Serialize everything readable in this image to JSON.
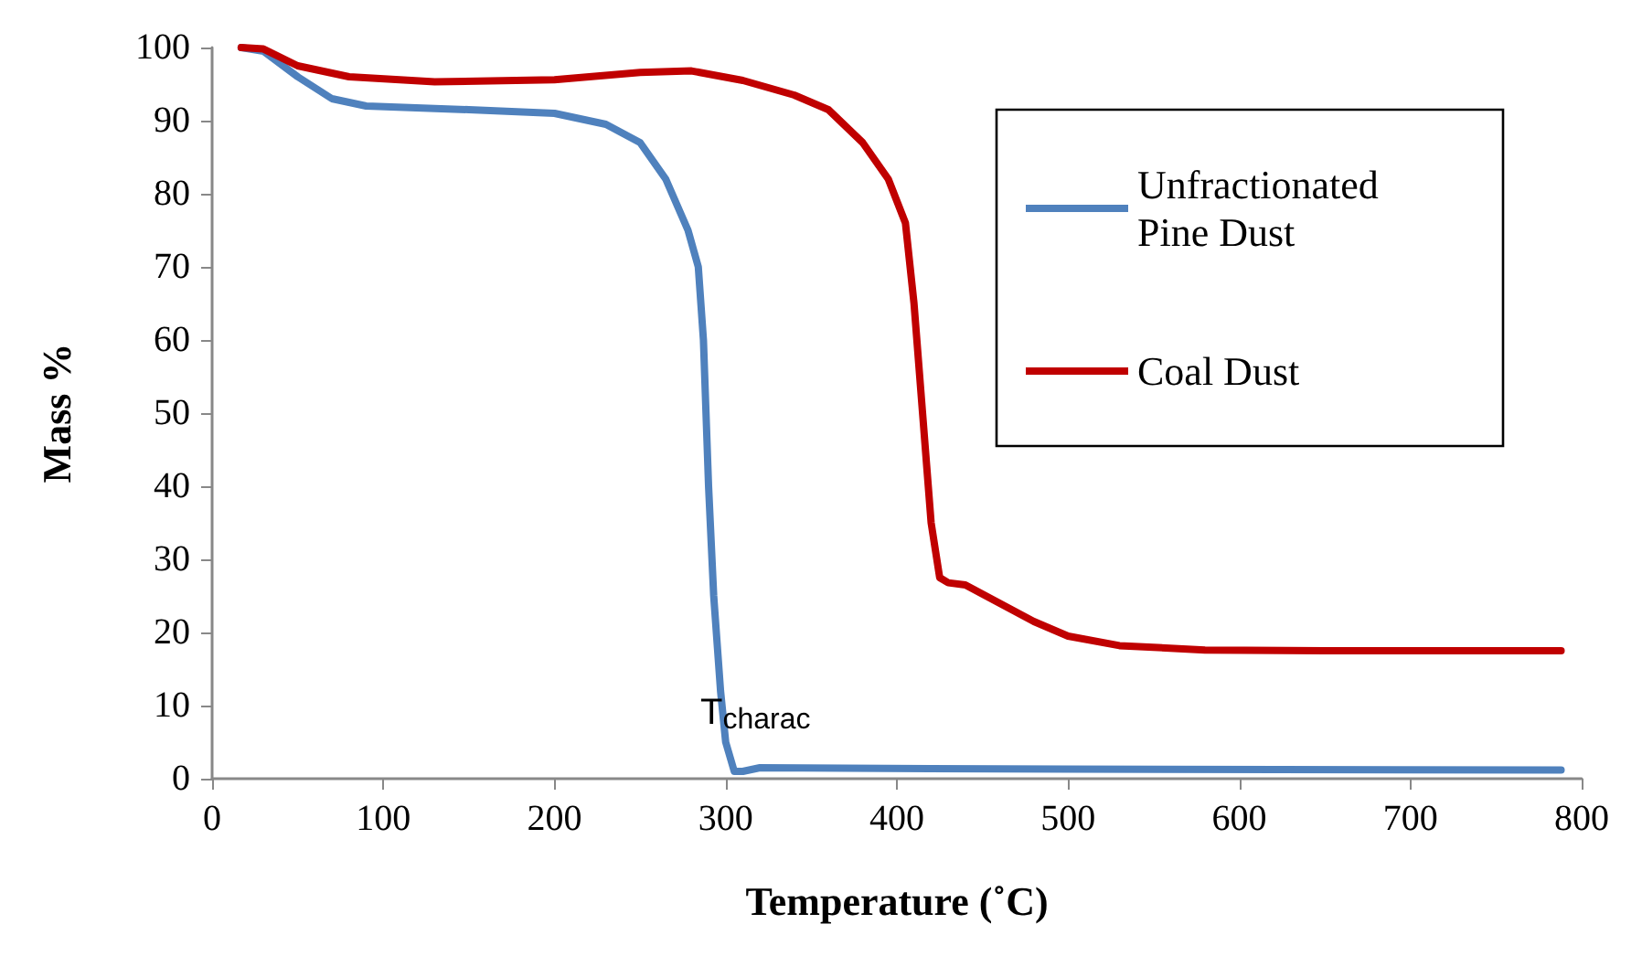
{
  "chart_data": {
    "type": "line",
    "xlabel": "Temperature (˚C)",
    "ylabel": "Mass %",
    "xlim": [
      0,
      800
    ],
    "xticks": [
      0,
      100,
      200,
      300,
      400,
      500,
      600,
      700,
      800
    ],
    "ylim": [
      0,
      100
    ],
    "yticks": [
      0,
      10,
      20,
      30,
      40,
      50,
      60,
      70,
      80,
      90,
      100
    ],
    "grid": false,
    "legend": "top right",
    "marker": "none",
    "line_style": "solid",
    "annotations": [
      "T$_{charac}$"
    ],
    "series": [
      {
        "name": "Unfractionated Pine Dust",
        "color": "#4f81bd",
        "x": [
          17,
          30,
          50,
          70,
          90,
          150,
          200,
          230,
          250,
          265,
          278,
          284,
          287,
          290,
          293,
          297,
          300,
          305,
          310,
          320,
          500,
          788
        ],
        "values": [
          100,
          99.5,
          96,
          93,
          92,
          91.5,
          91,
          89.5,
          87,
          82,
          75,
          70,
          60,
          40,
          25,
          12,
          5,
          1,
          1,
          1.5,
          1.3,
          1.2
        ]
      },
      {
        "name": "Coal Dust",
        "color": "#c00000",
        "x": [
          17,
          30,
          50,
          80,
          130,
          200,
          250,
          280,
          310,
          340,
          360,
          380,
          395,
          405,
          410,
          415,
          420,
          425,
          430,
          440,
          460,
          480,
          500,
          530,
          580,
          650,
          788
        ],
        "values": [
          100,
          99.8,
          97.5,
          96,
          95.3,
          95.6,
          96.6,
          96.8,
          95.5,
          93.5,
          91.5,
          87,
          82,
          76,
          65,
          50,
          35,
          27.5,
          26.8,
          26.5,
          24,
          21.5,
          19.5,
          18.2,
          17.6,
          17.5,
          17.5
        ]
      }
    ]
  }
}
